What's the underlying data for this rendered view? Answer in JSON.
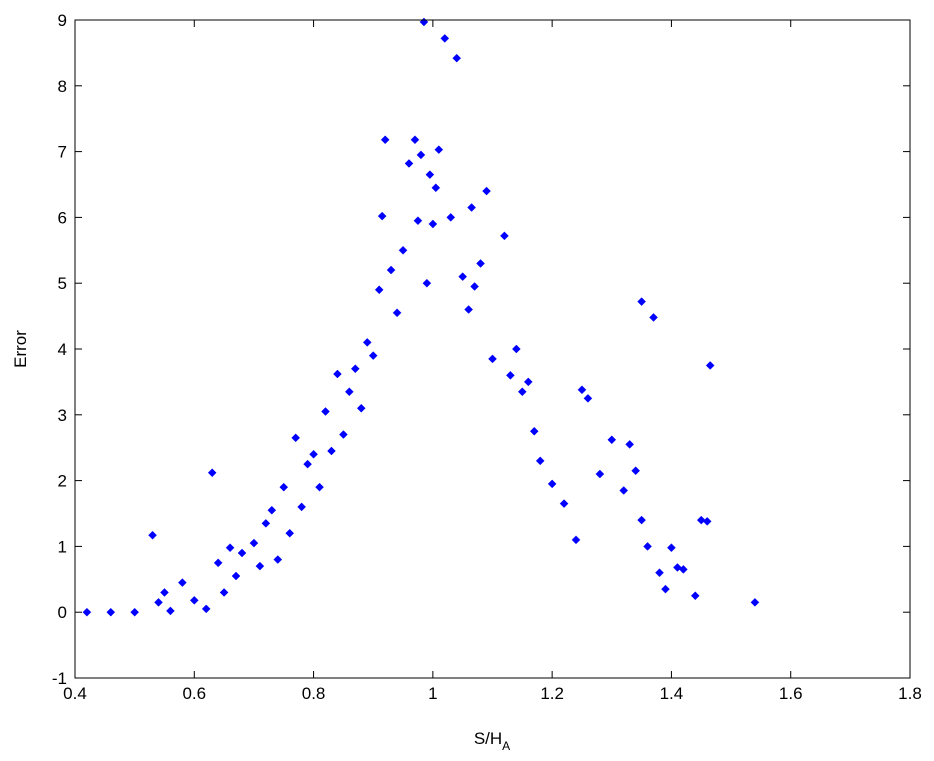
{
  "chart_data": {
    "type": "scatter",
    "xlabel_main": "S/H",
    "xlabel_sub": "A",
    "ylabel": "Error",
    "xlim": [
      0.4,
      1.8
    ],
    "ylim": [
      -1,
      9
    ],
    "xticks": [
      0.4,
      0.6,
      0.8,
      1,
      1.2,
      1.4,
      1.6,
      1.8
    ],
    "xtick_labels": [
      "0.4",
      "0.6",
      "0.8",
      "1",
      "1.2",
      "1.4",
      "1.6",
      "1.8"
    ],
    "yticks": [
      -1,
      0,
      1,
      2,
      3,
      4,
      5,
      6,
      7,
      8,
      9
    ],
    "ytick_labels": [
      "-1",
      "0",
      "1",
      "2",
      "3",
      "4",
      "5",
      "6",
      "7",
      "8",
      "9"
    ],
    "marker": "diamond",
    "marker_color": "#0000ff",
    "grid": false,
    "legend": "none",
    "series": [
      {
        "points": [
          [
            0.42,
            0.0
          ],
          [
            0.46,
            0.0
          ],
          [
            0.5,
            0.0
          ],
          [
            0.53,
            1.17
          ],
          [
            0.55,
            0.3
          ],
          [
            0.54,
            0.15
          ],
          [
            0.56,
            0.02
          ],
          [
            0.58,
            0.45
          ],
          [
            0.6,
            0.18
          ],
          [
            0.62,
            0.05
          ],
          [
            0.63,
            2.12
          ],
          [
            0.64,
            0.75
          ],
          [
            0.65,
            0.3
          ],
          [
            0.66,
            0.98
          ],
          [
            0.67,
            0.55
          ],
          [
            0.68,
            0.9
          ],
          [
            0.7,
            1.05
          ],
          [
            0.71,
            0.7
          ],
          [
            0.72,
            1.35
          ],
          [
            0.73,
            1.55
          ],
          [
            0.74,
            0.8
          ],
          [
            0.75,
            1.9
          ],
          [
            0.76,
            1.2
          ],
          [
            0.77,
            2.65
          ],
          [
            0.78,
            1.6
          ],
          [
            0.79,
            2.25
          ],
          [
            0.8,
            2.4
          ],
          [
            0.81,
            1.9
          ],
          [
            0.82,
            3.05
          ],
          [
            0.83,
            2.45
          ],
          [
            0.84,
            3.62
          ],
          [
            0.85,
            2.7
          ],
          [
            0.86,
            3.35
          ],
          [
            0.87,
            3.7
          ],
          [
            0.88,
            3.1
          ],
          [
            0.89,
            4.1
          ],
          [
            0.9,
            3.9
          ],
          [
            0.91,
            4.9
          ],
          [
            0.915,
            6.02
          ],
          [
            0.92,
            7.18
          ],
          [
            0.93,
            5.2
          ],
          [
            0.94,
            4.55
          ],
          [
            0.95,
            5.5
          ],
          [
            0.96,
            6.82
          ],
          [
            0.97,
            7.18
          ],
          [
            0.975,
            5.95
          ],
          [
            0.98,
            6.95
          ],
          [
            0.985,
            8.97
          ],
          [
            0.99,
            5.0
          ],
          [
            0.995,
            6.65
          ],
          [
            1.0,
            5.9
          ],
          [
            1.005,
            6.45
          ],
          [
            1.01,
            7.03
          ],
          [
            1.02,
            8.72
          ],
          [
            1.03,
            6.0
          ],
          [
            1.04,
            8.42
          ],
          [
            1.05,
            5.1
          ],
          [
            1.06,
            4.6
          ],
          [
            1.065,
            6.15
          ],
          [
            1.07,
            4.95
          ],
          [
            1.08,
            5.3
          ],
          [
            1.09,
            6.4
          ],
          [
            1.1,
            3.85
          ],
          [
            1.12,
            5.72
          ],
          [
            1.13,
            3.6
          ],
          [
            1.14,
            4.0
          ],
          [
            1.15,
            3.35
          ],
          [
            1.16,
            3.5
          ],
          [
            1.17,
            2.75
          ],
          [
            1.18,
            2.3
          ],
          [
            1.2,
            1.95
          ],
          [
            1.22,
            1.65
          ],
          [
            1.24,
            1.1
          ],
          [
            1.25,
            3.38
          ],
          [
            1.26,
            3.25
          ],
          [
            1.28,
            2.1
          ],
          [
            1.3,
            2.62
          ],
          [
            1.32,
            1.85
          ],
          [
            1.33,
            2.55
          ],
          [
            1.34,
            2.15
          ],
          [
            1.35,
            1.4
          ],
          [
            1.36,
            1.0
          ],
          [
            1.35,
            4.72
          ],
          [
            1.37,
            4.48
          ],
          [
            1.38,
            0.6
          ],
          [
            1.39,
            0.35
          ],
          [
            1.4,
            0.98
          ],
          [
            1.41,
            0.68
          ],
          [
            1.42,
            0.65
          ],
          [
            1.44,
            0.25
          ],
          [
            1.45,
            1.4
          ],
          [
            1.46,
            1.38
          ],
          [
            1.465,
            3.75
          ],
          [
            1.54,
            0.15
          ]
        ]
      }
    ]
  }
}
